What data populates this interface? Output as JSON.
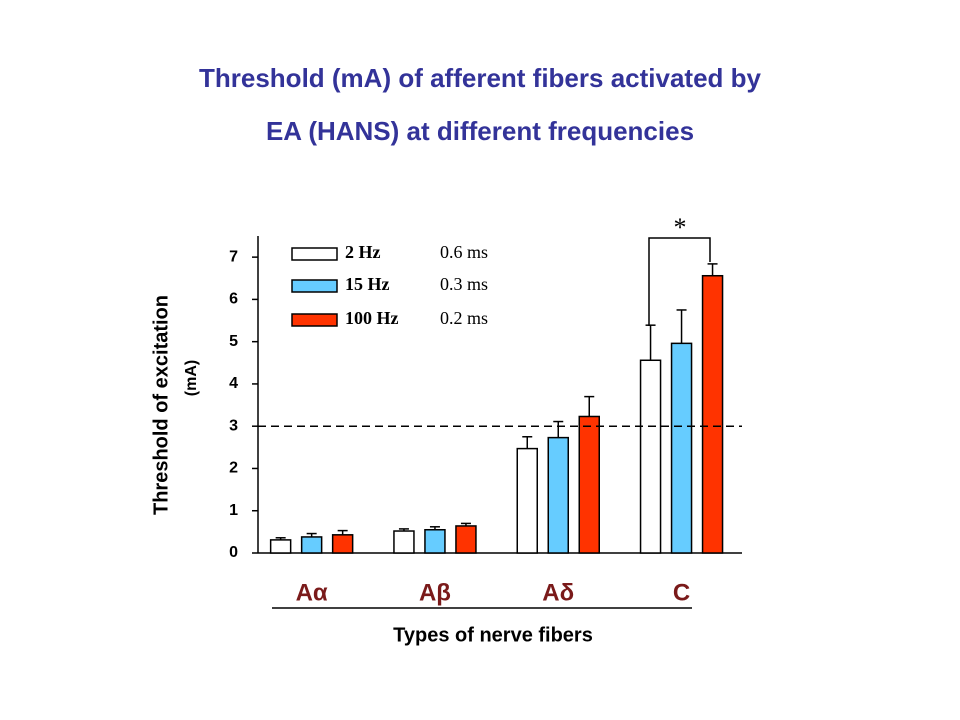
{
  "chart_data": {
    "type": "bar",
    "title": [
      "Threshold (mA) of afferent fibers activated by",
      "EA (HANS) at different frequencies"
    ],
    "y_label": [
      "Threshold of excitation",
      "(mA)"
    ],
    "x_label": "Types of nerve fibers",
    "categories": [
      "Aα",
      "Aβ",
      "Aδ",
      "C"
    ],
    "series": [
      {
        "name": "2 Hz",
        "pulse_width": "0.6 ms",
        "color": "#ffffff",
        "values": [
          0.31,
          0.52,
          2.47,
          4.56
        ],
        "errors": [
          0.05,
          0.05,
          0.28,
          0.83
        ]
      },
      {
        "name": "15 Hz",
        "pulse_width": "0.3 ms",
        "color": "#66ccff",
        "values": [
          0.38,
          0.55,
          2.73,
          4.96
        ],
        "errors": [
          0.08,
          0.07,
          0.38,
          0.79
        ]
      },
      {
        "name": "100 Hz",
        "pulse_width": "0.2 ms",
        "color": "#ff3300",
        "values": [
          0.43,
          0.64,
          3.23,
          6.56
        ],
        "errors": [
          0.1,
          0.06,
          0.47,
          0.28
        ]
      }
    ],
    "ylim": [
      0,
      7.5
    ],
    "yticks": [
      0,
      1,
      2,
      3,
      4,
      5,
      6,
      7
    ],
    "reference_line": 3,
    "annotation": "*"
  }
}
